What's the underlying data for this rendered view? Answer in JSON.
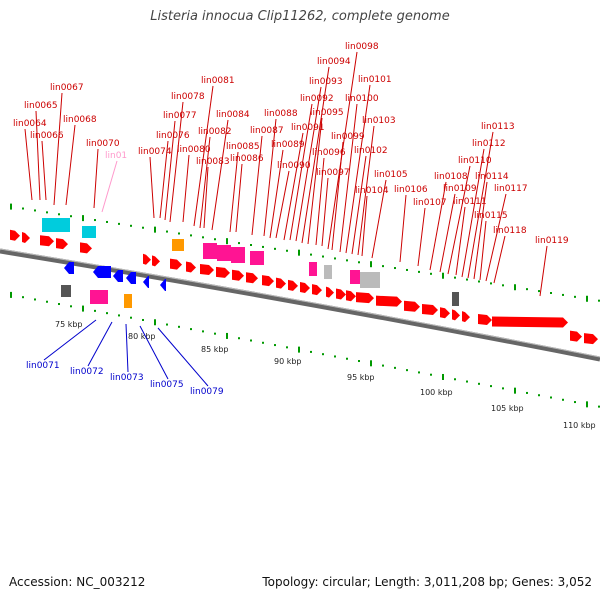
{
  "title": "Listeria innocua Clip11262, complete genome",
  "accession": "Accession: NC_003212",
  "topology": "Topology: circular; Length: 3,011,208 bp; Genes: 3,052",
  "colors": {
    "forward": "#ff0000",
    "reverse": "#0000ff",
    "pseudo": "#ff99cc",
    "label_forward": "#cc0000",
    "label_reverse": "#0000cc",
    "ticks": "#009900",
    "backbone": "#666666"
  },
  "scale_labels": [
    "75 kbp",
    "80 kbp",
    "85 kbp",
    "90 kbp",
    "95 kbp",
    "100 kbp",
    "105 kbp",
    "110 kbp"
  ],
  "top_labels": [
    {
      "text": "lin0064"
    },
    {
      "text": "lin0065"
    },
    {
      "text": "lin0066"
    },
    {
      "text": "lin0067"
    },
    {
      "text": "lin0068"
    },
    {
      "text": "lin0070"
    },
    {
      "text": "lin01"
    },
    {
      "text": "lin0074"
    },
    {
      "text": "lin0076"
    },
    {
      "text": "lin0077"
    },
    {
      "text": "lin0078"
    },
    {
      "text": "lin0080"
    },
    {
      "text": "lin0081"
    },
    {
      "text": "lin0082"
    },
    {
      "text": "lin0083"
    },
    {
      "text": "lin0084"
    },
    {
      "text": "lin0085"
    },
    {
      "text": "lin0086"
    },
    {
      "text": "lin0087"
    },
    {
      "text": "lin0088"
    },
    {
      "text": "lin0089"
    },
    {
      "text": "lin0090"
    },
    {
      "text": "lin0091"
    },
    {
      "text": "lin0092"
    },
    {
      "text": "lin0093"
    },
    {
      "text": "lin0094"
    },
    {
      "text": "lin0095"
    },
    {
      "text": "lin0096"
    },
    {
      "text": "lin0097"
    },
    {
      "text": "lin0098"
    },
    {
      "text": "lin0099"
    },
    {
      "text": "lin0100"
    },
    {
      "text": "lin0101"
    },
    {
      "text": "lin0102"
    },
    {
      "text": "lin0103"
    },
    {
      "text": "lin0104"
    },
    {
      "text": "lin0105"
    },
    {
      "text": "lin0106"
    },
    {
      "text": "lin0107"
    },
    {
      "text": "lin0108"
    },
    {
      "text": "lin0109"
    },
    {
      "text": "lin0110"
    },
    {
      "text": "lin0111"
    },
    {
      "text": "lin0112"
    },
    {
      "text": "lin0113"
    },
    {
      "text": "lin0114"
    },
    {
      "text": "lin0115"
    },
    {
      "text": "lin0117"
    },
    {
      "text": "lin0118"
    },
    {
      "text": "lin0119"
    }
  ],
  "bottom_labels": [
    {
      "text": "lin0071"
    },
    {
      "text": "lin0072"
    },
    {
      "text": "lin0073"
    },
    {
      "text": "lin0075"
    },
    {
      "text": "lin0079"
    }
  ]
}
